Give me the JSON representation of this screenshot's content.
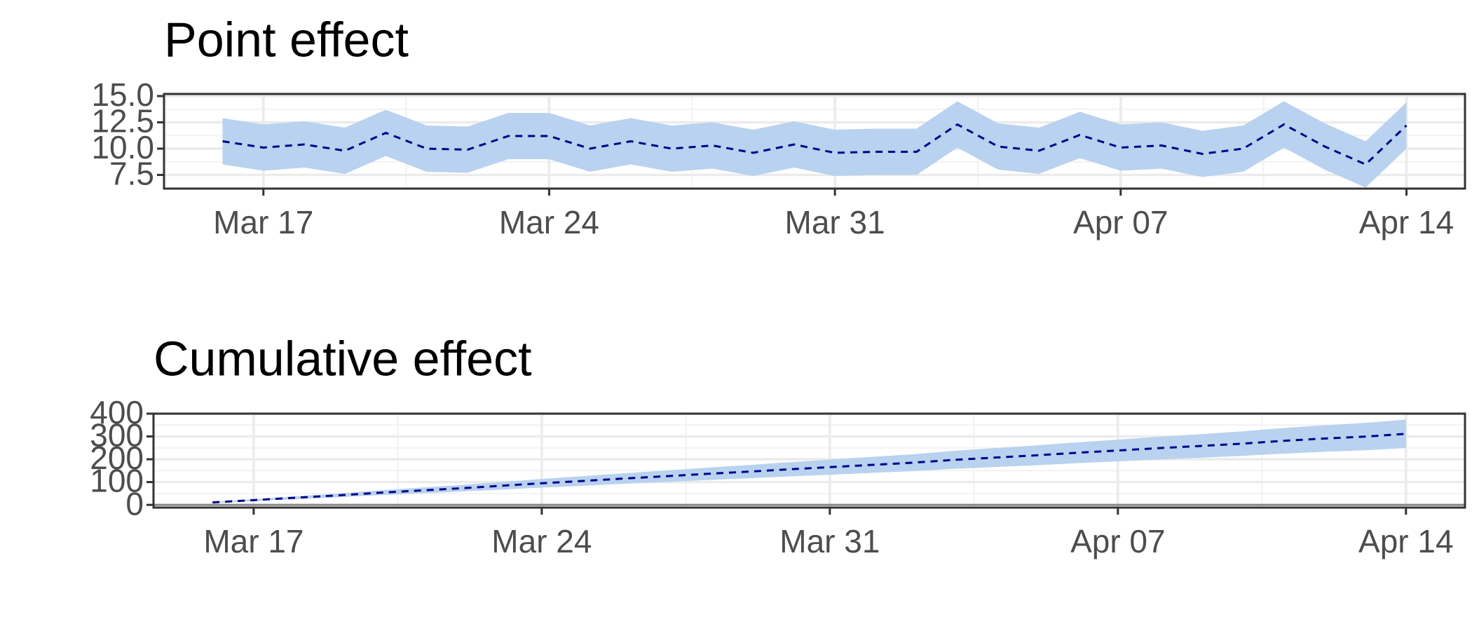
{
  "chart_data": [
    {
      "type": "line",
      "title": "Point effect",
      "x": [
        "Mar 16",
        "Mar 17",
        "Mar 18",
        "Mar 19",
        "Mar 20",
        "Mar 21",
        "Mar 22",
        "Mar 23",
        "Mar 24",
        "Mar 25",
        "Mar 26",
        "Mar 27",
        "Mar 28",
        "Mar 29",
        "Mar 30",
        "Mar 31",
        "Apr 01",
        "Apr 02",
        "Apr 03",
        "Apr 04",
        "Apr 05",
        "Apr 06",
        "Apr 07",
        "Apr 08",
        "Apr 09",
        "Apr 10",
        "Apr 11",
        "Apr 12",
        "Apr 13",
        "Apr 14"
      ],
      "values": [
        10.7,
        10.1,
        10.4,
        9.8,
        11.5,
        10.0,
        9.9,
        11.2,
        11.2,
        10.0,
        10.7,
        10.0,
        10.3,
        9.6,
        10.4,
        9.6,
        9.7,
        9.7,
        12.3,
        10.2,
        9.8,
        11.3,
        10.1,
        10.3,
        9.5,
        10.0,
        12.3,
        10.2,
        8.5,
        12.2
      ],
      "lower": [
        8.5,
        7.9,
        8.2,
        7.6,
        9.3,
        7.8,
        7.7,
        9.0,
        9.0,
        7.8,
        8.5,
        7.8,
        8.1,
        7.4,
        8.2,
        7.4,
        7.5,
        7.5,
        10.1,
        8.0,
        7.6,
        9.1,
        7.9,
        8.1,
        7.3,
        7.8,
        10.1,
        8.0,
        6.3,
        10.0
      ],
      "upper": [
        12.9,
        12.3,
        12.6,
        12.0,
        13.7,
        12.2,
        12.1,
        13.4,
        13.4,
        12.2,
        12.9,
        12.2,
        12.5,
        11.8,
        12.6,
        11.8,
        11.9,
        11.9,
        14.5,
        12.4,
        12.0,
        13.5,
        12.3,
        12.5,
        11.7,
        12.2,
        14.5,
        12.4,
        10.7,
        14.4
      ],
      "color": "#00008b",
      "band_color": "#b8d2ef",
      "xticks": [
        "Mar 17",
        "Mar 24",
        "Mar 31",
        "Apr 07",
        "Apr 14"
      ],
      "ylim": [
        6.2,
        15.2
      ],
      "yticks": [
        7.5,
        {
          "value": 10,
          "label": "10.0"
        },
        12.5,
        {
          "value": 15,
          "label": "15.0"
        }
      ],
      "grid": true
    },
    {
      "type": "line",
      "title": "Cumulative effect",
      "x": [
        "Mar 16",
        "Mar 17",
        "Mar 18",
        "Mar 19",
        "Mar 20",
        "Mar 21",
        "Mar 22",
        "Mar 23",
        "Mar 24",
        "Mar 25",
        "Mar 26",
        "Mar 27",
        "Mar 28",
        "Mar 29",
        "Mar 30",
        "Mar 31",
        "Apr 01",
        "Apr 02",
        "Apr 03",
        "Apr 04",
        "Apr 05",
        "Apr 06",
        "Apr 07",
        "Apr 08",
        "Apr 09",
        "Apr 10",
        "Apr 11",
        "Apr 12",
        "Apr 13",
        "Apr 14"
      ],
      "values": [
        10.7,
        20.8,
        31.2,
        41.0,
        52.5,
        62.5,
        72.4,
        83.6,
        94.8,
        104.8,
        115.5,
        125.5,
        135.8,
        145.4,
        155.8,
        165.4,
        175.1,
        184.8,
        197.1,
        207.3,
        217.1,
        228.4,
        238.5,
        248.8,
        258.3,
        268.3,
        280.6,
        290.8,
        299.3,
        311.5
      ],
      "lower": [
        8.6,
        16.6,
        25.0,
        32.8,
        42.0,
        50.0,
        57.9,
        66.9,
        75.8,
        83.8,
        92.4,
        100.4,
        108.6,
        116.3,
        124.6,
        132.3,
        140.1,
        147.8,
        157.7,
        165.8,
        173.7,
        182.7,
        190.8,
        199.0,
        206.6,
        214.6,
        224.5,
        232.6,
        239.4,
        249.2
      ],
      "upper": [
        12.8,
        25.0,
        37.4,
        49.2,
        63.0,
        75.0,
        86.9,
        100.3,
        113.8,
        125.8,
        138.6,
        150.6,
        163.0,
        174.5,
        187.0,
        198.5,
        210.1,
        221.8,
        236.5,
        248.8,
        260.5,
        274.1,
        286.2,
        298.6,
        310.0,
        322.0,
        336.7,
        349.0,
        359.2,
        373.8
      ],
      "color": "#00008b",
      "band_color": "#b8d2ef",
      "xticks": [
        "Mar 17",
        "Mar 24",
        "Mar 31",
        "Apr 07",
        "Apr 14"
      ],
      "ylim": [
        -12,
        400
      ],
      "yticks": [
        0,
        100,
        200,
        300,
        400
      ],
      "grid": true
    }
  ]
}
